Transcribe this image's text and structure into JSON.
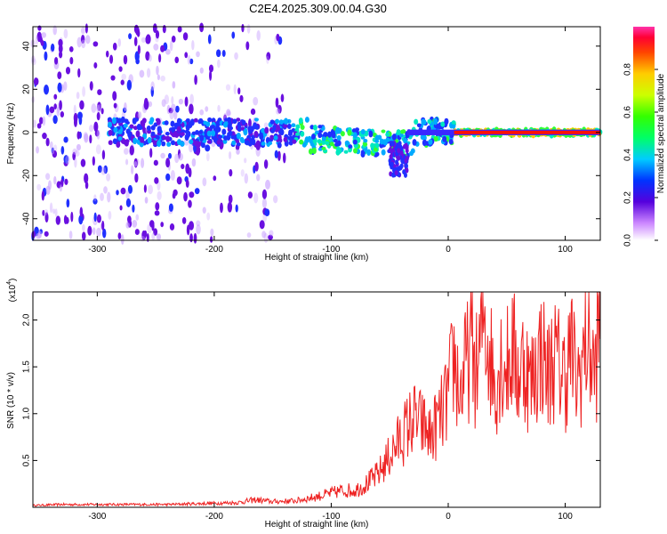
{
  "title": "C2E4.2025.309.00.04.G30",
  "chart_data": [
    {
      "type": "heatmap",
      "title": "C2E4.2025.309.00.04.G30",
      "xlabel": "Height of straight line (km)",
      "ylabel": "Frequency (Hz)",
      "xlim": [
        -355,
        130
      ],
      "ylim": [
        -50,
        49
      ],
      "xticks": [
        -300,
        -200,
        -100,
        0,
        100
      ],
      "xtick_labels": [
        "-300",
        "-200",
        "-100",
        "0",
        "100"
      ],
      "yticks": [
        -40,
        -20,
        0,
        20,
        40
      ],
      "ytick_labels": [
        "-40",
        "-20",
        "0",
        "20",
        "40"
      ],
      "colorbar": {
        "label": "Normalized spectral amplitude",
        "range": [
          0,
          1
        ],
        "ticks": [
          0.0,
          0.2,
          0.4,
          0.6,
          0.8
        ],
        "tick_labels": [
          "0.0",
          "0.2",
          "0.4",
          "0.6",
          "0.8"
        ]
      }
    },
    {
      "type": "line",
      "xlabel": "Height of straight line (km)",
      "ylabel": "SNR (10 * v/v)",
      "scale_label": "(x10",
      "scale_exp": "4",
      "xlim": [
        -355,
        130
      ],
      "ylim": [
        0,
        2.3
      ],
      "xticks": [
        -300,
        -200,
        -100,
        0,
        100
      ],
      "xtick_labels": [
        "-300",
        "-200",
        "-100",
        "0",
        "100"
      ],
      "yticks": [
        0.5,
        1.0,
        1.5,
        2.0
      ],
      "ytick_labels": [
        "0.5",
        "1.0",
        "1.5",
        "2.0"
      ],
      "color": "#ee2222",
      "series": [
        {
          "name": "SNR",
          "x": [
            -355,
            -330,
            -300,
            -270,
            -240,
            -210,
            -180,
            -165,
            -150,
            -130,
            -110,
            -100,
            -90,
            -80,
            -70,
            -60,
            -55,
            -50,
            -45,
            -40,
            -35,
            -30,
            -25,
            -20,
            -15,
            -10,
            -5,
            0,
            5,
            10,
            15,
            20,
            25,
            30,
            35,
            40,
            45,
            50,
            55,
            60,
            65,
            70,
            75,
            80,
            85,
            90,
            95,
            100,
            105,
            110,
            115,
            120,
            125,
            130
          ],
          "y": [
            0.02,
            0.03,
            0.03,
            0.03,
            0.03,
            0.04,
            0.05,
            0.08,
            0.06,
            0.07,
            0.12,
            0.15,
            0.18,
            0.18,
            0.25,
            0.35,
            0.45,
            0.55,
            0.65,
            0.75,
            0.85,
            0.95,
            0.9,
            0.85,
            0.75,
            0.9,
            1.0,
            1.2,
            1.6,
            1.2,
            1.5,
            1.7,
            1.4,
            2.1,
            1.7,
            1.3,
            1.6,
            1.5,
            1.7,
            1.4,
            1.6,
            1.3,
            1.5,
            1.7,
            1.4,
            1.6,
            1.5,
            1.4,
            1.7,
            1.3,
            1.6,
            1.8,
            1.4,
            2.0
          ]
        }
      ]
    }
  ]
}
